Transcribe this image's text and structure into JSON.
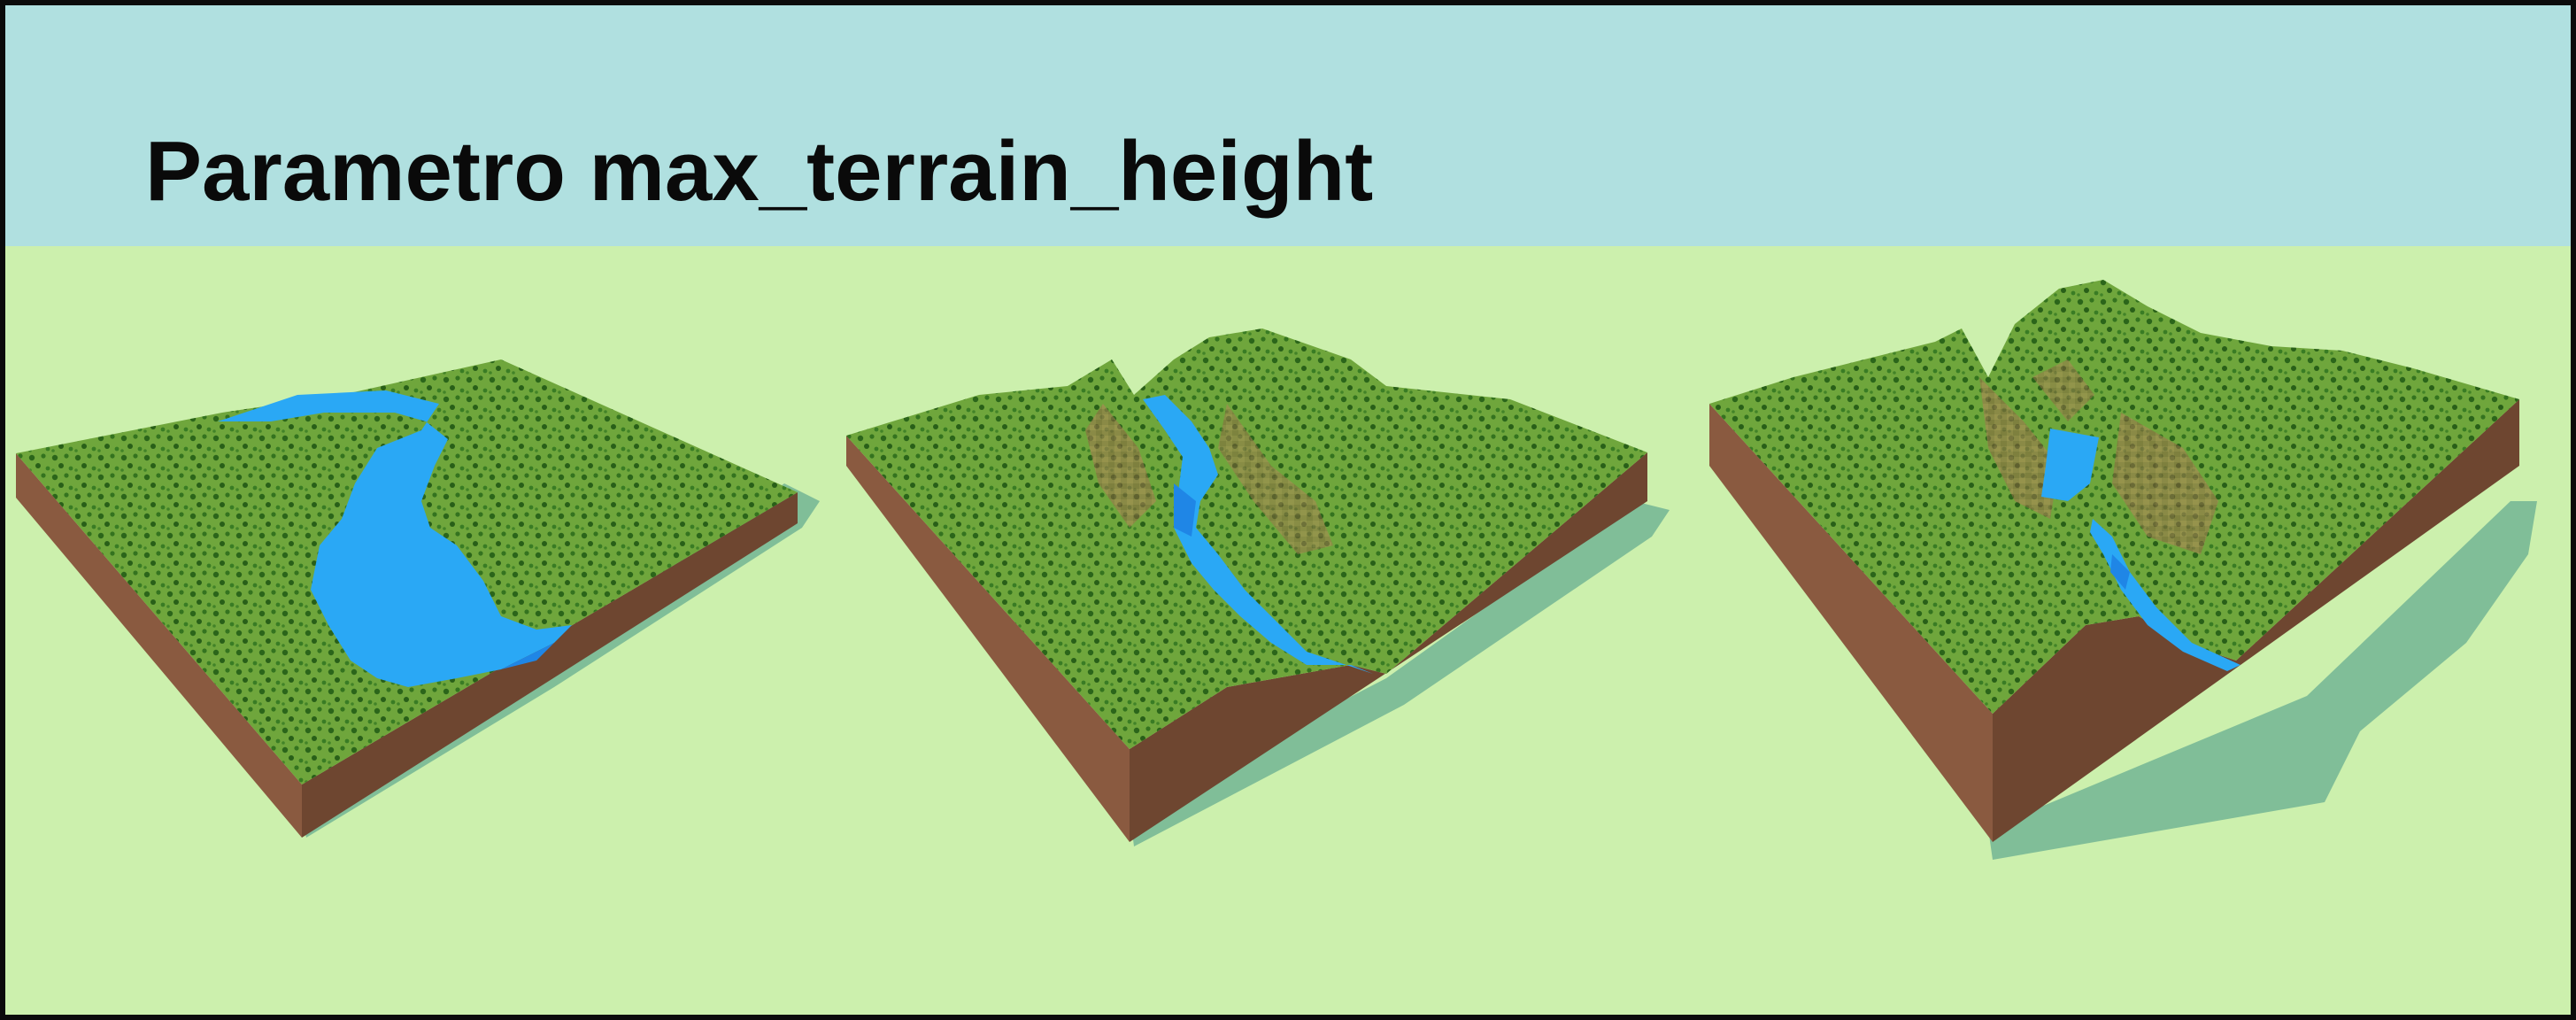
{
  "title": "Parametro max_terrain_height",
  "colors": {
    "sky": "#b0e0e0",
    "ground": "#ccf0ad",
    "grass": "#6fa63c",
    "grass_dark": "#4f8a2a",
    "trees": "#1f5a14",
    "water": "#2aa8f5",
    "water_deep": "#1f86e6",
    "dirt_front": "#8a5a40",
    "dirt_side": "#6e4630",
    "rock": "#9a6a4a",
    "shadow": "#78b896"
  },
  "panels": [
    {
      "name": "terrain-low"
    },
    {
      "name": "terrain-medium"
    },
    {
      "name": "terrain-high"
    }
  ]
}
